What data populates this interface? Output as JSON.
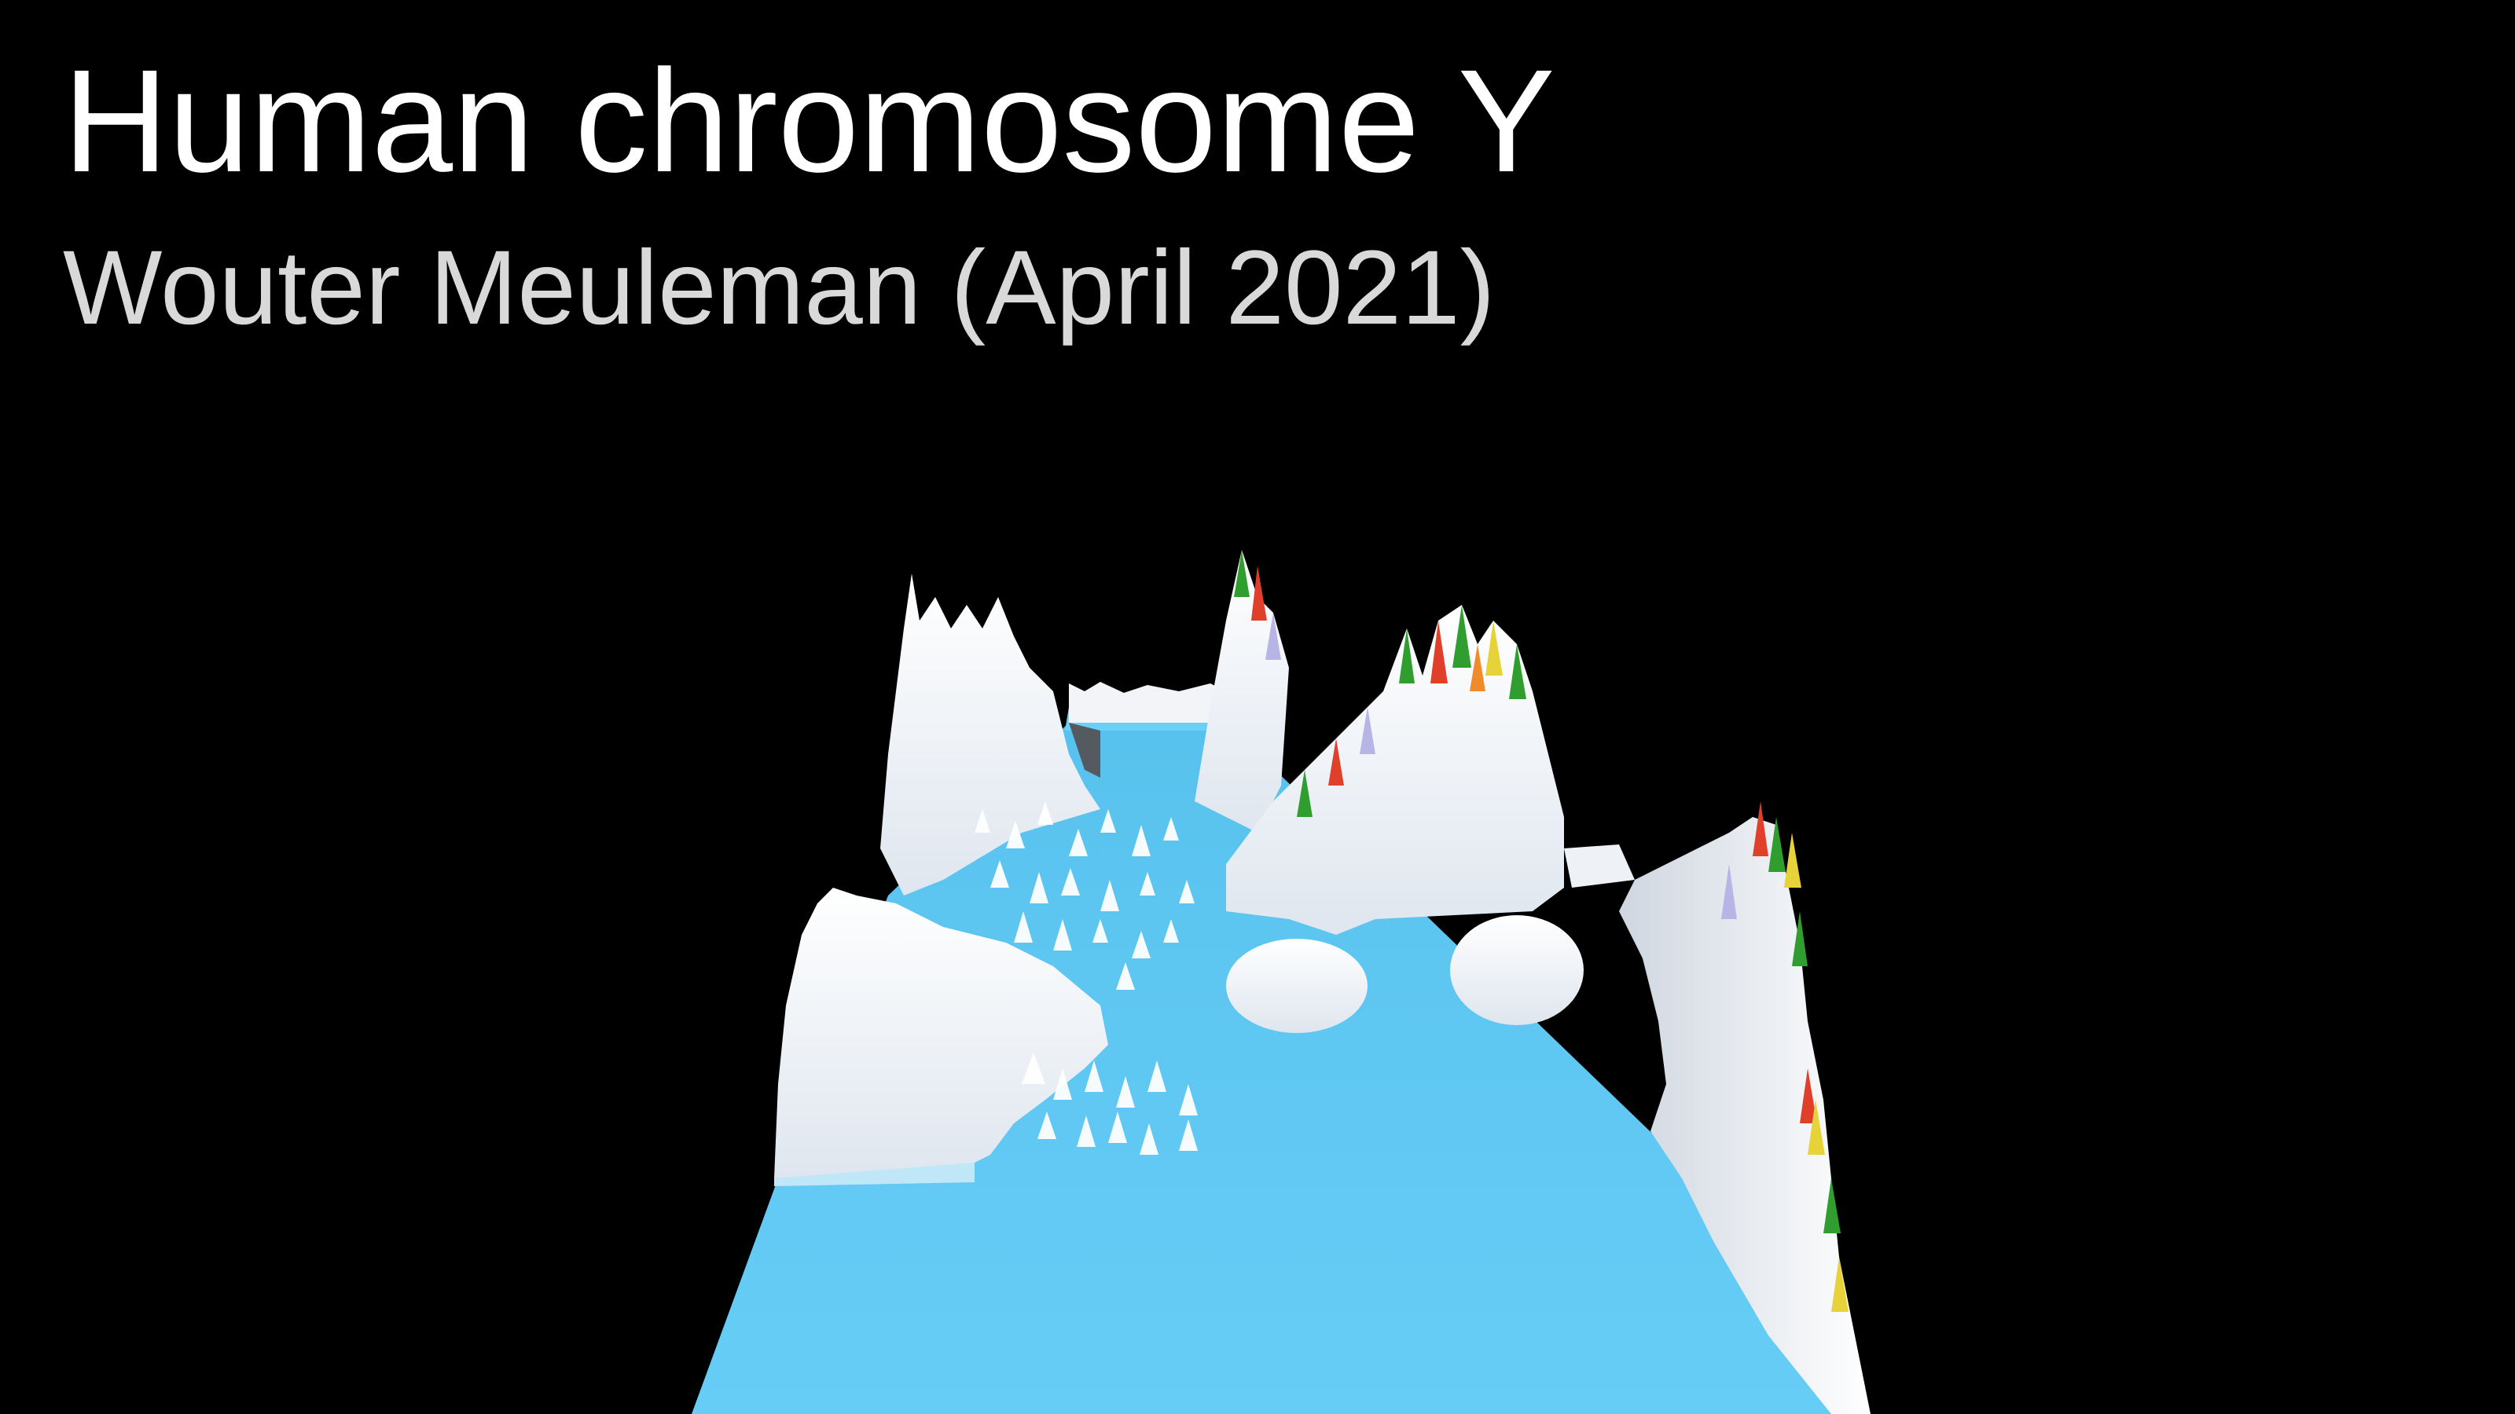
{
  "slide": {
    "title": "Human chromosome Y",
    "subtitle": "Wouter Meuleman (April 2021)"
  },
  "render": {
    "description_colors": {
      "background": "#000000",
      "floor": "#5ec8f2",
      "floor_shadow": "#3aa8d8",
      "terrain": "#f4f6fa",
      "peak_green": "#2f9e2f",
      "peak_red": "#e0402a",
      "peak_yellow": "#e8d23a",
      "peak_orange": "#f08a2a",
      "peak_lavender": "#b7b4e6"
    }
  }
}
